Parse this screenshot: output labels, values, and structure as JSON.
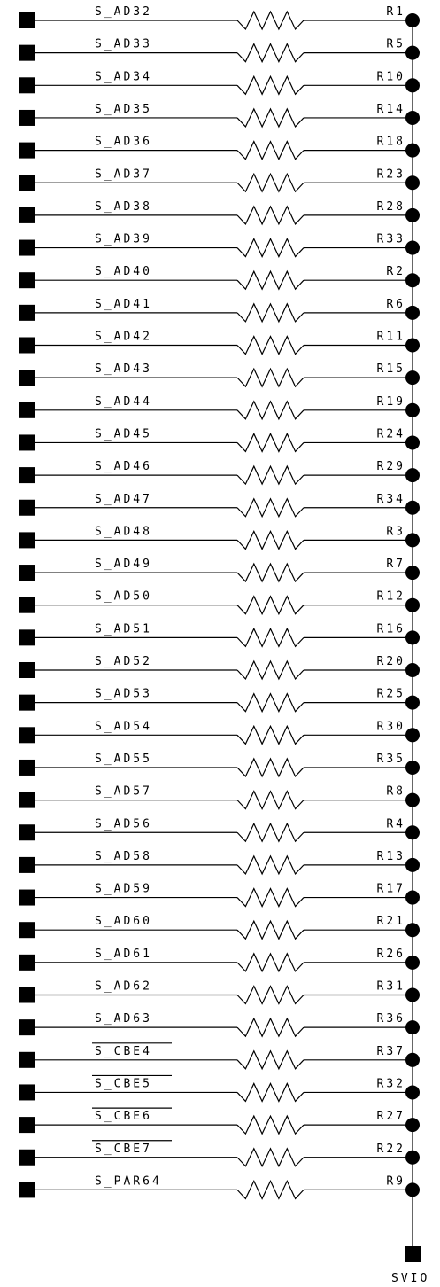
{
  "schematic": {
    "power_port": "SVIO",
    "nets": [
      {
        "label": "S_AD32",
        "ref": "R1",
        "inverted": false
      },
      {
        "label": "S_AD33",
        "ref": "R5",
        "inverted": false
      },
      {
        "label": "S_AD34",
        "ref": "R10",
        "inverted": false
      },
      {
        "label": "S_AD35",
        "ref": "R14",
        "inverted": false
      },
      {
        "label": "S_AD36",
        "ref": "R18",
        "inverted": false
      },
      {
        "label": "S_AD37",
        "ref": "R23",
        "inverted": false
      },
      {
        "label": "S_AD38",
        "ref": "R28",
        "inverted": false
      },
      {
        "label": "S_AD39",
        "ref": "R33",
        "inverted": false
      },
      {
        "label": "S_AD40",
        "ref": "R2",
        "inverted": false
      },
      {
        "label": "S_AD41",
        "ref": "R6",
        "inverted": false
      },
      {
        "label": "S_AD42",
        "ref": "R11",
        "inverted": false
      },
      {
        "label": "S_AD43",
        "ref": "R15",
        "inverted": false
      },
      {
        "label": "S_AD44",
        "ref": "R19",
        "inverted": false
      },
      {
        "label": "S_AD45",
        "ref": "R24",
        "inverted": false
      },
      {
        "label": "S_AD46",
        "ref": "R29",
        "inverted": false
      },
      {
        "label": "S_AD47",
        "ref": "R34",
        "inverted": false
      },
      {
        "label": "S_AD48",
        "ref": "R3",
        "inverted": false
      },
      {
        "label": "S_AD49",
        "ref": "R7",
        "inverted": false
      },
      {
        "label": "S_AD50",
        "ref": "R12",
        "inverted": false
      },
      {
        "label": "S_AD51",
        "ref": "R16",
        "inverted": false
      },
      {
        "label": "S_AD52",
        "ref": "R20",
        "inverted": false
      },
      {
        "label": "S_AD53",
        "ref": "R25",
        "inverted": false
      },
      {
        "label": "S_AD54",
        "ref": "R30",
        "inverted": false
      },
      {
        "label": "S_AD55",
        "ref": "R35",
        "inverted": false
      },
      {
        "label": "S_AD57",
        "ref": "R8",
        "inverted": false
      },
      {
        "label": "S_AD56",
        "ref": "R4",
        "inverted": false
      },
      {
        "label": "S_AD58",
        "ref": "R13",
        "inverted": false
      },
      {
        "label": "S_AD59",
        "ref": "R17",
        "inverted": false
      },
      {
        "label": "S_AD60",
        "ref": "R21",
        "inverted": false
      },
      {
        "label": "S_AD61",
        "ref": "R26",
        "inverted": false
      },
      {
        "label": "S_AD62",
        "ref": "R31",
        "inverted": false
      },
      {
        "label": "S_AD63",
        "ref": "R36",
        "inverted": false
      },
      {
        "label": "S_CBE4",
        "ref": "R37",
        "inverted": true
      },
      {
        "label": "S_CBE5",
        "ref": "R32",
        "inverted": true
      },
      {
        "label": "S_CBE6",
        "ref": "R27",
        "inverted": true
      },
      {
        "label": "S_CBE7",
        "ref": "R22",
        "inverted": true
      },
      {
        "label": "S_PAR64",
        "ref": "R9",
        "inverted": false
      }
    ]
  }
}
